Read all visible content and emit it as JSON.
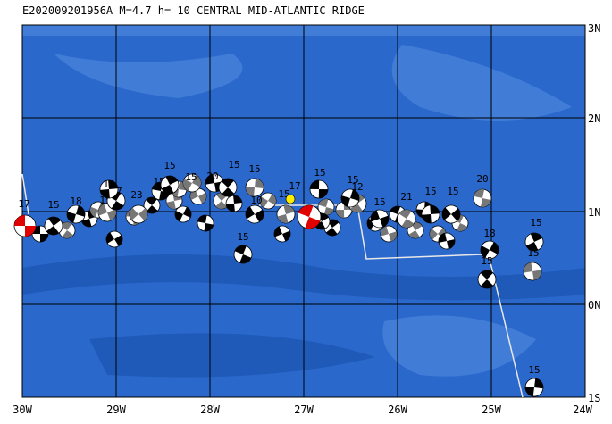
{
  "map": {
    "title": "E202009201956A M=4.7 h= 10 CENTRAL MID-ATLANTIC RIDGE",
    "x_labels": [
      "30W",
      "29W",
      "28W",
      "27W",
      "26W",
      "25W",
      "24W"
    ],
    "y_labels": [
      "3N",
      "2N",
      "1N",
      "0N",
      "1S"
    ],
    "events": [
      {
        "label": "17"
      },
      {
        "label": "15"
      },
      {
        "label": "18"
      },
      {
        "label": "15"
      },
      {
        "label": "17"
      },
      {
        "label": "15"
      },
      {
        "label": "23"
      },
      {
        "label": "15"
      },
      {
        "label": "15"
      },
      {
        "label": "15"
      },
      {
        "label": "20"
      },
      {
        "label": "15"
      },
      {
        "label": "15"
      },
      {
        "label": "10"
      },
      {
        "label": "15"
      },
      {
        "label": "15"
      },
      {
        "label": "17"
      },
      {
        "label": "15"
      },
      {
        "label": "12"
      },
      {
        "label": "15"
      },
      {
        "label": "15"
      },
      {
        "label": "21"
      },
      {
        "label": "15"
      },
      {
        "label": "15"
      },
      {
        "label": "20"
      },
      {
        "label": "15"
      },
      {
        "label": "18"
      },
      {
        "label": "15"
      },
      {
        "label": "15"
      },
      {
        "label": "15"
      }
    ]
  }
}
